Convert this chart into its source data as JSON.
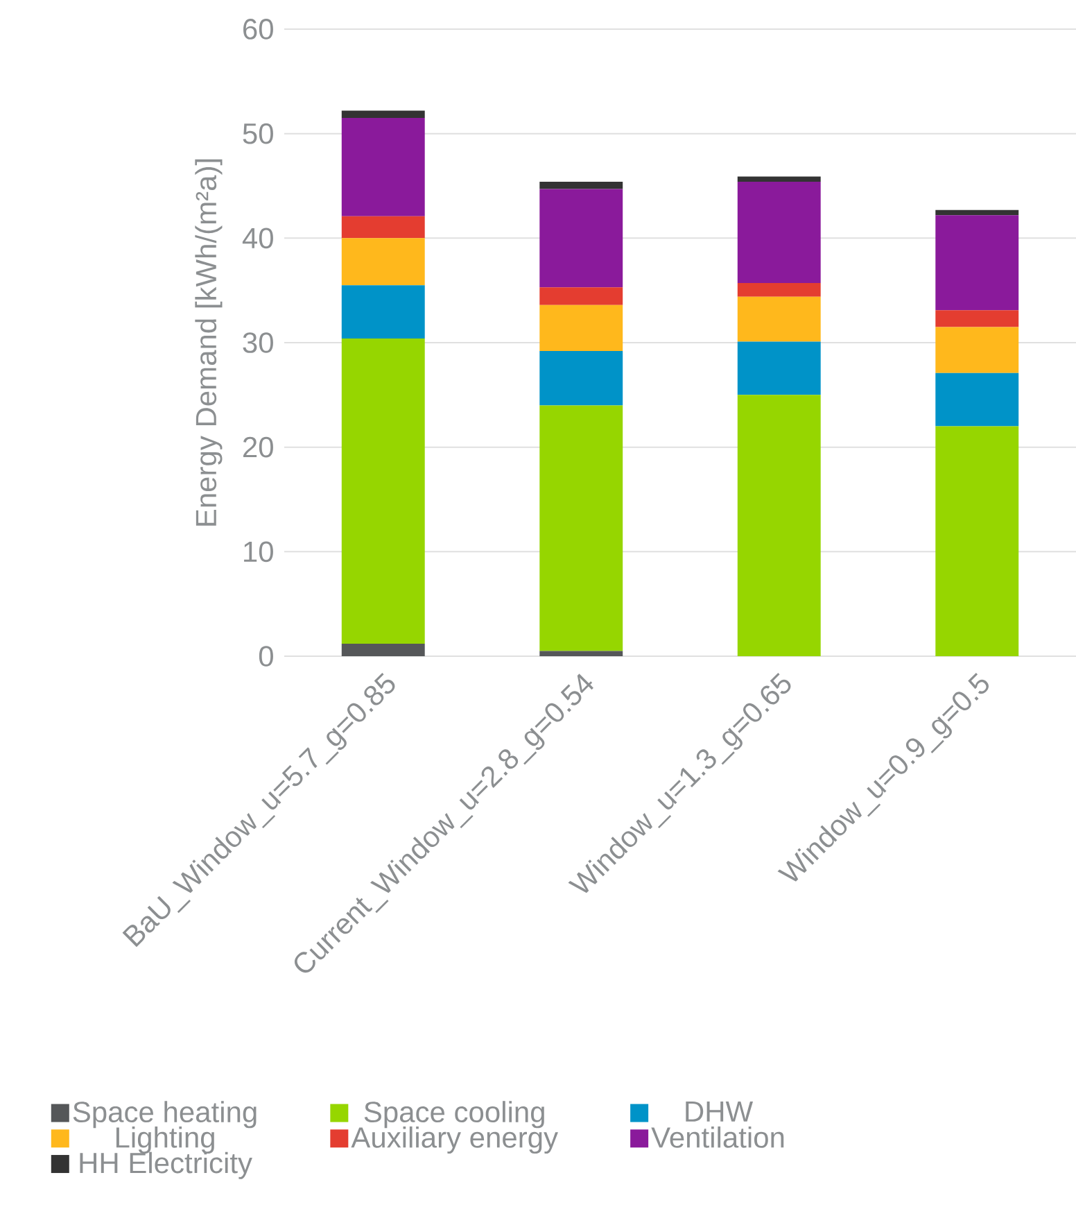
{
  "chart_data": {
    "type": "bar",
    "stacked": true,
    "ylabel": "Energy Demand [kWh/(m²a)]",
    "categories": [
      "BaU_Window_u=5.7_g=0.85",
      "Current_Window_u=2.8_g=0.54",
      "Window_u=1.3_g=0.65",
      "Window_u=0.9_g=0.5"
    ],
    "series": [
      {
        "name": "Space heating",
        "color": "#555759",
        "values": [
          1.2,
          0.5,
          0,
          0
        ]
      },
      {
        "name": "Space cooling",
        "color": "#96d600",
        "values": [
          29.2,
          23.5,
          25.0,
          22.0
        ]
      },
      {
        "name": "DHW",
        "color": "#0093c8",
        "values": [
          5.1,
          5.2,
          5.1,
          5.1
        ]
      },
      {
        "name": "Lighting",
        "color": "#ffb81c",
        "values": [
          4.5,
          4.4,
          4.3,
          4.4
        ]
      },
      {
        "name": "Auxiliary energy",
        "color": "#e43d30",
        "values": [
          2.1,
          1.7,
          1.3,
          1.6
        ]
      },
      {
        "name": "Ventilation",
        "color": "#8a1a9b",
        "values": [
          9.4,
          9.4,
          9.7,
          9.1
        ]
      },
      {
        "name": "HH Electricity",
        "color": "#333333",
        "values": [
          0.7,
          0.7,
          0.5,
          0.5
        ]
      }
    ],
    "ylim": [
      0,
      60
    ],
    "yticks": [
      0,
      10,
      20,
      30,
      40,
      50,
      60
    ],
    "grid": "y",
    "legend": "bottom"
  }
}
